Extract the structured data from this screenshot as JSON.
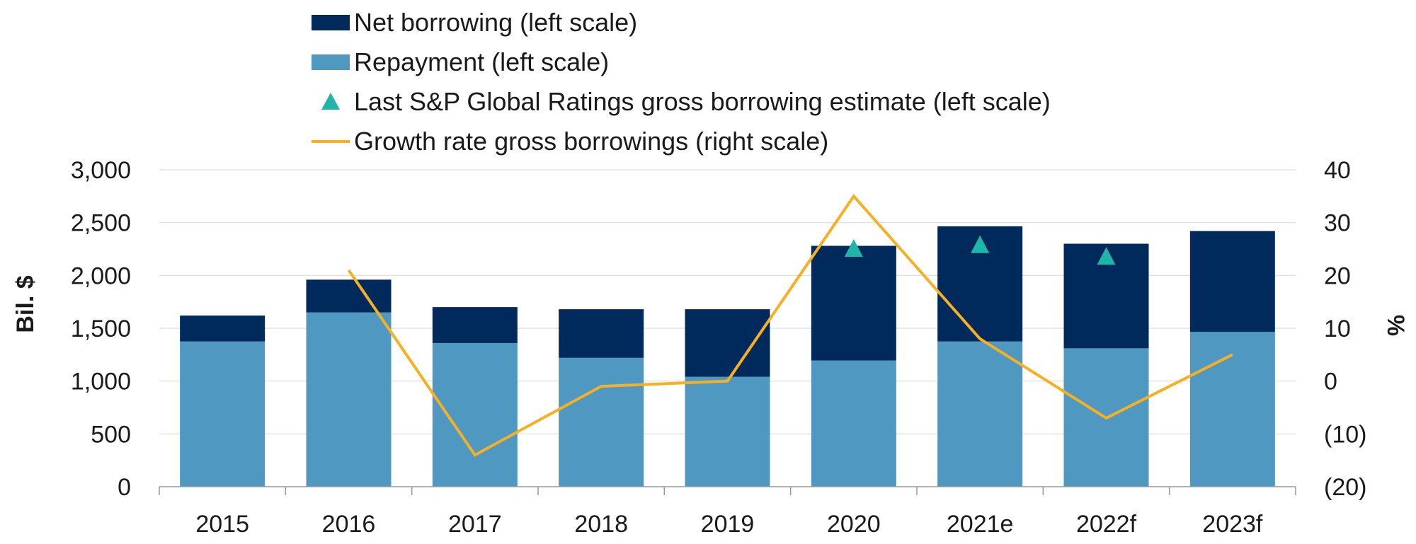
{
  "chart_data": {
    "type": "bar",
    "stacked": true,
    "categories": [
      "2015",
      "2016",
      "2017",
      "2018",
      "2019",
      "2020",
      "2021e",
      "2022f",
      "2023f"
    ],
    "series": [
      {
        "name": "Repayment (left scale)",
        "kind": "bar",
        "axis": "left",
        "color": "#4f98c1",
        "values": [
          1375,
          1650,
          1360,
          1220,
          1040,
          1195,
          1375,
          1310,
          1465
        ]
      },
      {
        "name": "Net borrowing (left scale)",
        "kind": "bar",
        "axis": "left",
        "color": "#002a5c",
        "values": [
          245,
          310,
          340,
          460,
          640,
          1085,
          1090,
          990,
          955
        ]
      },
      {
        "name": "Last S&P Global Ratings gross borrowing estimate (left scale)",
        "kind": "marker",
        "marker": "triangle",
        "axis": "left",
        "color": "#1fb5a8",
        "values": [
          null,
          null,
          null,
          null,
          null,
          2250,
          2285,
          2175,
          null
        ]
      },
      {
        "name": "Growth rate gross borrowings (right scale)",
        "kind": "line",
        "axis": "right",
        "color": "#f5b024",
        "values": [
          null,
          21,
          -14,
          -1,
          0,
          35,
          8,
          -7,
          5
        ]
      }
    ],
    "legend_order": [
      1,
      0,
      2,
      3
    ],
    "ylabel": "Bil. $",
    "y2label": "%",
    "ylim": [
      0,
      3000
    ],
    "y2lim": [
      -20,
      40
    ],
    "yticks": [
      "0",
      "500",
      "1,000",
      "1,500",
      "2,000",
      "2,500",
      "3,000"
    ],
    "y2ticks": [
      "(20)",
      "(10)",
      "0",
      "10",
      "20",
      "30",
      "40"
    ],
    "grid": true,
    "legend_position": "top-center"
  }
}
